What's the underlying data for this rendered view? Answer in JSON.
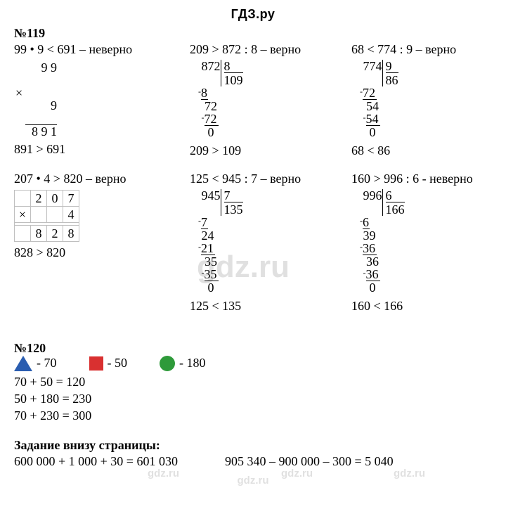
{
  "header": "ГДЗ.ру",
  "watermarks": {
    "big": "gdz.ru",
    "small": "gdz.ru"
  },
  "p119": {
    "title": "№119",
    "r1c1": {
      "stmt": "99 • 9 < 691 – неверно",
      "mult": {
        "a": "9 9",
        "b": "9",
        "res": "8 9 1",
        "sign": "×"
      },
      "concl": "891 > 691"
    },
    "r1c2": {
      "stmt": "209 > 872 : 8 – верно",
      "div": {
        "dividend": "872",
        "divisor": "8",
        "quot": "109",
        "steps": [
          {
            "minus": "8",
            "pad": "",
            "underW": 1
          },
          {
            "bring": "72",
            "pad": " "
          },
          {
            "minus": "72",
            "pad": " ",
            "underW": 2
          },
          {
            "rem": "0",
            "pad": "  "
          }
        ]
      },
      "concl": "209 > 109"
    },
    "r1c3": {
      "stmt": "68 < 774 : 9 – верно",
      "div": {
        "dividend": "774",
        "divisor": "9",
        "quot": "86",
        "steps": [
          {
            "minus": "72",
            "pad": "",
            "underW": 2
          },
          {
            "bring": "54",
            "pad": " "
          },
          {
            "minus": "54",
            "pad": " ",
            "underW": 2
          },
          {
            "rem": "0",
            "pad": "  "
          }
        ]
      },
      "concl": "68 < 86"
    },
    "r2c1": {
      "stmt": "207 • 4 > 820 – верно",
      "mult_table": {
        "a": [
          "2",
          "0",
          "7"
        ],
        "b": [
          "",
          "",
          "4"
        ],
        "res": [
          "8",
          "2",
          "8"
        ],
        "sign": "×"
      },
      "concl": "828 > 820"
    },
    "r2c2": {
      "stmt": "125 < 945 : 7 – верно",
      "div": {
        "dividend": "945",
        "divisor": "7",
        "quot": "135",
        "steps": [
          {
            "minus": "7",
            "pad": "",
            "underW": 1
          },
          {
            "bring": "24",
            "pad": ""
          },
          {
            "minus": "21",
            "pad": "",
            "underW": 2
          },
          {
            "bring": "35",
            "pad": " "
          },
          {
            "minus": "35",
            "pad": " ",
            "underW": 2
          },
          {
            "rem": "0",
            "pad": "  "
          }
        ]
      },
      "concl": "125 < 135"
    },
    "r2c3": {
      "stmt": "160 > 996 : 6 - неверно",
      "div": {
        "dividend": "996",
        "divisor": "6",
        "quot": "166",
        "steps": [
          {
            "minus": "6",
            "pad": "",
            "underW": 1
          },
          {
            "bring": "39",
            "pad": ""
          },
          {
            "minus": "36",
            "pad": "",
            "underW": 2
          },
          {
            "bring": "36",
            "pad": " "
          },
          {
            "minus": "36",
            "pad": " ",
            "underW": 2
          },
          {
            "rem": "0",
            "pad": "  "
          }
        ]
      },
      "concl": "160 < 166"
    }
  },
  "p120": {
    "title": "№120",
    "shapes": [
      {
        "type": "triangle",
        "color": "#2a5db0",
        "label": "- 70"
      },
      {
        "type": "square",
        "color": "#d93030",
        "label": "- 50"
      },
      {
        "type": "circle",
        "color": "#2e9a3a",
        "label": "- 180"
      }
    ],
    "eqs": [
      "70 + 50 = 120",
      "50 + 180 = 230",
      "70 + 230 = 300"
    ]
  },
  "bottom": {
    "title": "Задание внизу страницы:",
    "eq1": "600 000 + 1 000 + 30 = 601 030",
    "eq2": "905 340 – 900 000 – 300 = 5 040"
  }
}
